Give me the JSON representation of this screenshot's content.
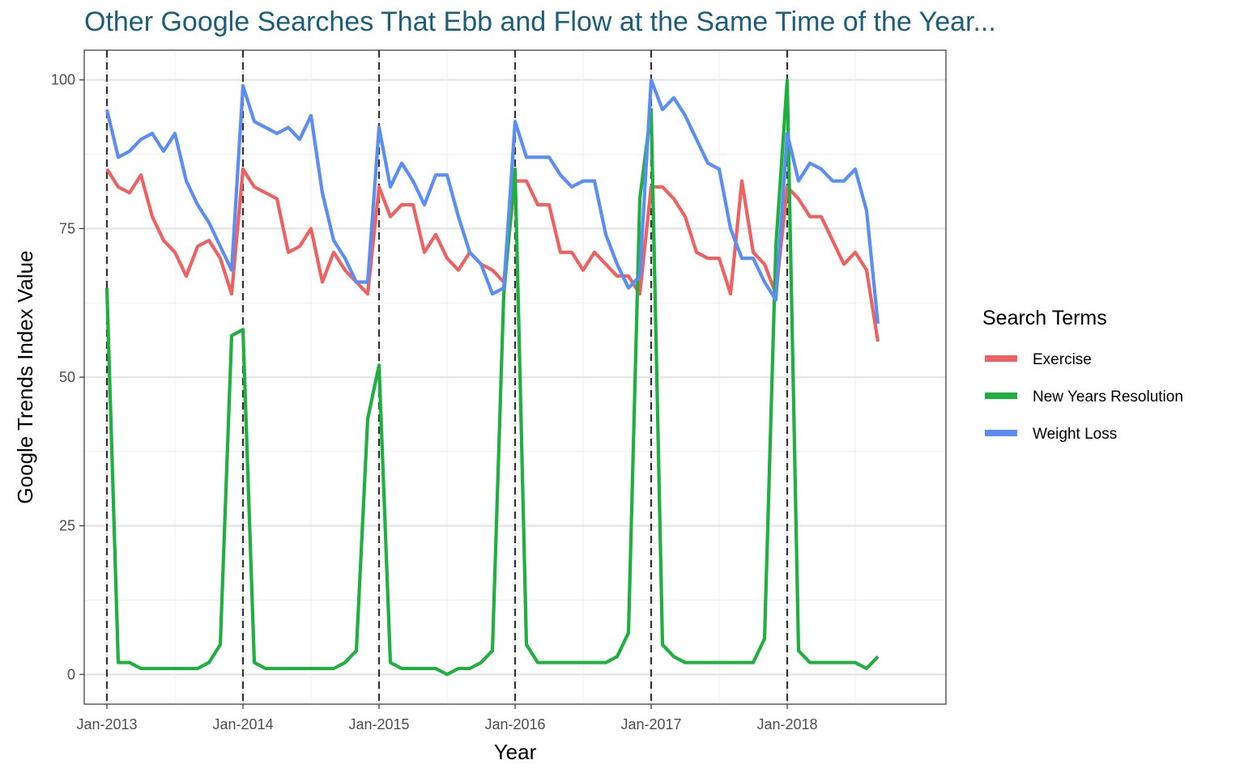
{
  "chart_data": {
    "type": "line",
    "title": "Other Google Searches That Ebb and Flow at the Same Time of the Year...",
    "xlabel": "Year",
    "ylabel": "Google Trends Index Value",
    "x_ticks": [
      "Jan-2013",
      "Jan-2014",
      "Jan-2015",
      "Jan-2016",
      "Jan-2017",
      "Jan-2018"
    ],
    "x_start": "2013-01",
    "x_unit": "month",
    "xlim": [
      "2012-11",
      "2019-03"
    ],
    "y_ticks": [
      0,
      25,
      50,
      75,
      100
    ],
    "ylim": [
      -5,
      105
    ],
    "grid": true,
    "vlines_dashed": [
      "2013-01",
      "2014-01",
      "2015-01",
      "2016-01",
      "2017-01",
      "2018-01"
    ],
    "legend": {
      "title": "Search Terms",
      "position": "right"
    },
    "series": [
      {
        "name": "Exercise",
        "color": "#ef6161",
        "values": [
          85,
          82,
          81,
          84,
          77,
          73,
          71,
          67,
          72,
          73,
          70,
          64,
          85,
          82,
          81,
          80,
          71,
          72,
          75,
          66,
          71,
          68,
          66,
          64,
          82,
          77,
          79,
          79,
          71,
          74,
          70,
          68,
          71,
          69,
          68,
          66,
          83,
          83,
          79,
          79,
          71,
          71,
          68,
          71,
          69,
          67,
          67,
          64,
          82,
          82,
          80,
          77,
          71,
          70,
          70,
          64,
          83,
          71,
          69,
          64,
          82,
          80,
          77,
          77,
          73,
          69,
          71,
          68,
          56
        ]
      },
      {
        "name": "New Years Resolution",
        "color": "#20b040",
        "values": [
          65,
          2,
          2,
          1,
          1,
          1,
          1,
          1,
          1,
          2,
          5,
          57,
          58,
          2,
          1,
          1,
          1,
          1,
          1,
          1,
          1,
          2,
          4,
          43,
          52,
          2,
          1,
          1,
          1,
          1,
          0,
          1,
          1,
          2,
          4,
          64,
          85,
          5,
          2,
          2,
          2,
          2,
          2,
          2,
          2,
          3,
          7,
          80,
          95,
          5,
          3,
          2,
          2,
          2,
          2,
          2,
          2,
          2,
          6,
          72,
          100,
          4,
          2,
          2,
          2,
          2,
          2,
          1,
          3
        ]
      },
      {
        "name": "Weight Loss",
        "color": "#5a8ef5",
        "values": [
          95,
          87,
          88,
          90,
          91,
          88,
          91,
          83,
          79,
          76,
          72,
          68,
          99,
          93,
          92,
          91,
          92,
          90,
          94,
          81,
          73,
          70,
          66,
          66,
          92,
          82,
          86,
          83,
          79,
          84,
          84,
          77,
          71,
          69,
          64,
          65,
          93,
          87,
          87,
          87,
          84,
          82,
          83,
          83,
          74,
          69,
          65,
          67,
          100,
          95,
          97,
          94,
          90,
          86,
          85,
          75,
          70,
          70,
          66,
          63,
          91,
          83,
          86,
          85,
          83,
          83,
          85,
          78,
          59
        ]
      }
    ]
  }
}
